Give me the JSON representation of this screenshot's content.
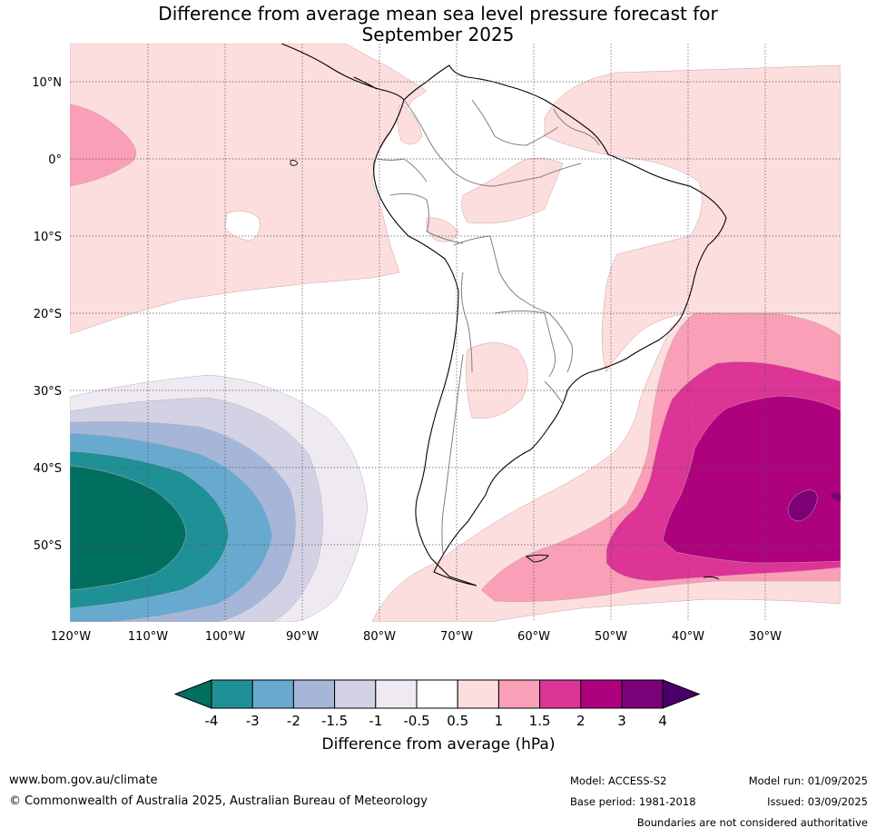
{
  "title": {
    "line1": "Difference from average mean sea level pressure forecast for",
    "line2": "September 2025"
  },
  "map": {
    "lat_labels": [
      "10°N",
      "0°",
      "10°S",
      "20°S",
      "30°S",
      "40°S",
      "50°S"
    ],
    "lon_labels": [
      "120°W",
      "110°W",
      "100°W",
      "90°W",
      "80°W",
      "70°W",
      "60°W",
      "50°W",
      "40°W",
      "30°W"
    ],
    "grid": "dotted",
    "region": "South America and surrounding oceans"
  },
  "colorbar": {
    "tick_labels": [
      "-4",
      "-3",
      "-2",
      "-1.5",
      "-1",
      "-0.5",
      "0.5",
      "1",
      "1.5",
      "2",
      "3",
      "4"
    ],
    "colors": [
      "#006f5f",
      "#1f9196",
      "#67a9cf",
      "#a5b6d9",
      "#d3d2e5",
      "#efeaf1",
      "#ffffff",
      "#fddede",
      "#f99fb8",
      "#dd3497",
      "#ae017e",
      "#7a0177",
      "#49006a"
    ],
    "label": "Difference from average (hPa)"
  },
  "footer": {
    "website": "www.bom.gov.au/climate",
    "copyright": "© Commonwealth of Australia 2025, Australian Bureau of Meteorology",
    "model": "Model: ACCESS-S2",
    "base_period": "Base period: 1981-2018",
    "model_run": "Model run: 01/09/2025",
    "issued": "Issued: 03/09/2025",
    "boundaries_note": "Boundaries are not considered authoritative"
  }
}
